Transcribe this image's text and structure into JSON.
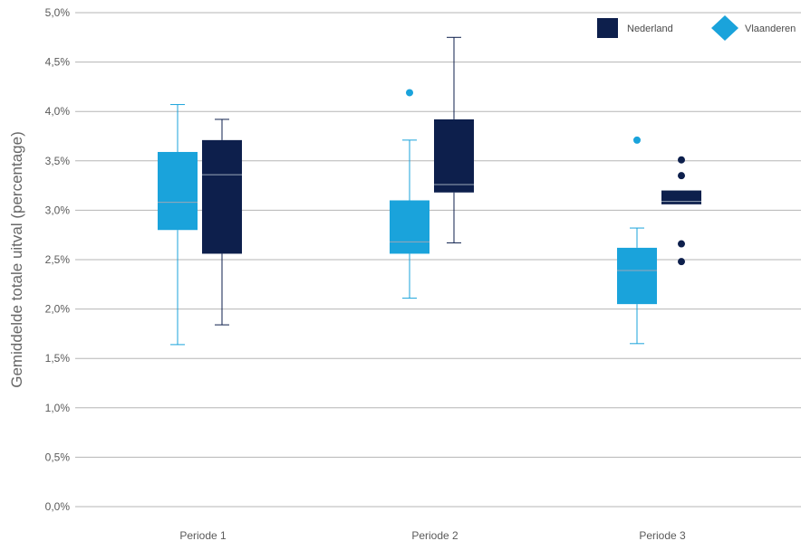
{
  "chart_data": {
    "type": "boxplot",
    "ylabel": "Gemiddelde totale uitval (percentage)",
    "xlabel": "",
    "ylim": [
      0,
      5
    ],
    "y_ticks": [
      0,
      0.5,
      1,
      1.5,
      2,
      2.5,
      3,
      3.5,
      4,
      4.5,
      5
    ],
    "y_tick_labels": [
      "0,0%",
      "0,5%",
      "1,0%",
      "1,5%",
      "2,0%",
      "2,5%",
      "3,0%",
      "3,5%",
      "4,0%",
      "4,5%",
      "5,0%"
    ],
    "grid": "horizontal",
    "legend_position": "top-right",
    "categories": [
      "Periode 1",
      "Periode 2",
      "Periode 3"
    ],
    "series": [
      {
        "name": "Vlaanderen",
        "color": "#1aa3db",
        "legend_marker": "diamond",
        "boxes": [
          {
            "whisker_low": 1.64,
            "q1": 2.8,
            "median": 3.08,
            "q3": 3.59,
            "whisker_high": 4.07,
            "outliers": []
          },
          {
            "whisker_low": 2.11,
            "q1": 2.56,
            "median": 2.68,
            "q3": 3.1,
            "whisker_high": 3.71,
            "outliers": [
              4.19
            ]
          },
          {
            "whisker_low": 1.65,
            "q1": 2.05,
            "median": 2.39,
            "q3": 2.62,
            "whisker_high": 2.82,
            "outliers": [
              3.71
            ]
          }
        ]
      },
      {
        "name": "Nederland",
        "color": "#0d1f4c",
        "legend_marker": "square",
        "boxes": [
          {
            "whisker_low": 1.84,
            "q1": 2.56,
            "median": 3.36,
            "q3": 3.71,
            "whisker_high": 3.92,
            "outliers": []
          },
          {
            "whisker_low": 2.67,
            "q1": 3.18,
            "median": 3.26,
            "q3": 3.92,
            "whisker_high": 4.75,
            "outliers": []
          },
          {
            "whisker_low": 3.06,
            "q1": 3.06,
            "median": 3.09,
            "q3": 3.2,
            "whisker_high": 3.2,
            "outliers": [
              3.51,
              3.35,
              2.66,
              2.48
            ]
          }
        ]
      }
    ]
  }
}
